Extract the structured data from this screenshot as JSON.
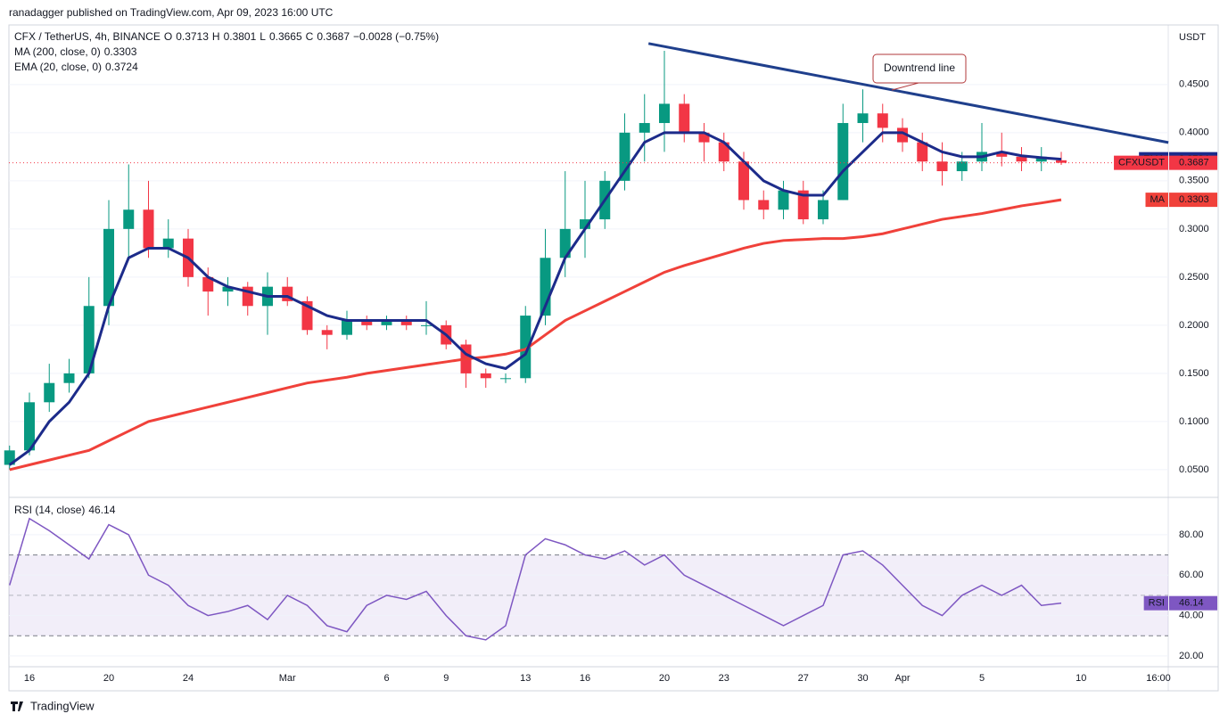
{
  "header": {
    "publisher": "ranadagger published on TradingView.com, Apr 09, 2023 16:00 UTC"
  },
  "footer": {
    "brand": "TradingView"
  },
  "chart_data": [
    {
      "type": "candlestick",
      "title": "CFX / TetherUS, 4h, BINANCE",
      "ticker": "CFXUSDT",
      "y_label": "USDT",
      "ohlc_labels": [
        "O",
        "H",
        "L",
        "C"
      ],
      "change": "−0.0028 (−0.75%)",
      "up_color": "#089981",
      "down_color": "#f23645",
      "categories": [
        null,
        "16",
        null,
        null,
        null,
        "20",
        null,
        null,
        null,
        "24",
        null,
        null,
        null,
        null,
        "Mar",
        null,
        null,
        null,
        null,
        "6",
        null,
        null,
        "9",
        null,
        null,
        null,
        "13",
        null,
        null,
        "16",
        null,
        null,
        null,
        "20",
        null,
        null,
        "23",
        null,
        null,
        null,
        "27",
        null,
        null,
        "30",
        null,
        "Apr",
        null,
        null,
        null,
        "5",
        null,
        null,
        null,
        null
      ],
      "xticks_extra": [
        {
          "value": 54,
          "label": "10"
        },
        {
          "value": 57.9,
          "label": "16:00"
        }
      ],
      "open": [
        0.055,
        0.07,
        0.12,
        0.14,
        0.15,
        0.22,
        0.3,
        0.32,
        0.28,
        0.29,
        0.25,
        0.235,
        0.24,
        0.22,
        0.24,
        0.225,
        0.195,
        0.19,
        0.205,
        0.2,
        0.205,
        0.2,
        0.2,
        0.18,
        0.15,
        0.145,
        0.145,
        0.21,
        0.27,
        0.3,
        0.31,
        0.35,
        0.4,
        0.41,
        0.43,
        0.4,
        0.39,
        0.37,
        0.33,
        0.32,
        0.34,
        0.31,
        0.33,
        0.41,
        0.42,
        0.405,
        0.39,
        0.37,
        0.36,
        0.37,
        0.38,
        0.375,
        0.37,
        0.3713
      ],
      "high": [
        0.075,
        0.13,
        0.16,
        0.165,
        0.25,
        0.33,
        0.367,
        0.35,
        0.31,
        0.3,
        0.26,
        0.25,
        0.245,
        0.255,
        0.25,
        0.23,
        0.2,
        0.215,
        0.21,
        0.21,
        0.21,
        0.225,
        0.205,
        0.185,
        0.155,
        0.15,
        0.22,
        0.3,
        0.36,
        0.35,
        0.36,
        0.42,
        0.44,
        0.485,
        0.44,
        0.41,
        0.4,
        0.38,
        0.34,
        0.35,
        0.35,
        0.34,
        0.43,
        0.445,
        0.43,
        0.415,
        0.4,
        0.39,
        0.38,
        0.41,
        0.4,
        0.385,
        0.385,
        0.3801
      ],
      "low": [
        0.05,
        0.065,
        0.11,
        0.13,
        0.145,
        0.2,
        0.27,
        0.27,
        0.27,
        0.24,
        0.21,
        0.22,
        0.21,
        0.19,
        0.22,
        0.19,
        0.175,
        0.185,
        0.195,
        0.195,
        0.195,
        0.19,
        0.175,
        0.135,
        0.135,
        0.14,
        0.14,
        0.2,
        0.25,
        0.27,
        0.3,
        0.34,
        0.37,
        0.38,
        0.39,
        0.37,
        0.36,
        0.32,
        0.31,
        0.31,
        0.305,
        0.305,
        0.33,
        0.39,
        0.39,
        0.38,
        0.36,
        0.345,
        0.35,
        0.36,
        0.365,
        0.36,
        0.36,
        0.3665
      ],
      "close": [
        0.07,
        0.12,
        0.14,
        0.15,
        0.22,
        0.3,
        0.32,
        0.28,
        0.29,
        0.25,
        0.235,
        0.24,
        0.22,
        0.24,
        0.225,
        0.195,
        0.19,
        0.205,
        0.2,
        0.205,
        0.2,
        0.2,
        0.18,
        0.15,
        0.145,
        0.145,
        0.21,
        0.27,
        0.3,
        0.31,
        0.35,
        0.4,
        0.41,
        0.43,
        0.4,
        0.39,
        0.37,
        0.33,
        0.32,
        0.34,
        0.31,
        0.33,
        0.41,
        0.42,
        0.405,
        0.39,
        0.37,
        0.36,
        0.37,
        0.38,
        0.375,
        0.37,
        0.375,
        0.3687
      ],
      "series": [
        {
          "name": "MA (200, close, 0)",
          "tag": "MA",
          "color": "#f0413a",
          "values": [
            0.05,
            0.055,
            0.06,
            0.065,
            0.07,
            0.08,
            0.09,
            0.1,
            0.105,
            0.11,
            0.115,
            0.12,
            0.125,
            0.13,
            0.135,
            0.14,
            0.143,
            0.146,
            0.15,
            0.153,
            0.156,
            0.159,
            0.162,
            0.165,
            0.167,
            0.17,
            0.175,
            0.19,
            0.205,
            0.215,
            0.225,
            0.235,
            0.245,
            0.255,
            0.262,
            0.268,
            0.274,
            0.28,
            0.285,
            0.288,
            0.289,
            0.29,
            0.29,
            0.292,
            0.295,
            0.3,
            0.305,
            0.31,
            0.313,
            0.316,
            0.32,
            0.324,
            0.327,
            0.3303
          ]
        },
        {
          "name": "EMA (20, close, 0)",
          "tag": "EMA",
          "color": "#1c2b8a",
          "values": [
            0.055,
            0.07,
            0.1,
            0.12,
            0.15,
            0.22,
            0.27,
            0.28,
            0.28,
            0.27,
            0.25,
            0.24,
            0.235,
            0.23,
            0.23,
            0.22,
            0.21,
            0.205,
            0.205,
            0.205,
            0.205,
            0.205,
            0.19,
            0.17,
            0.16,
            0.155,
            0.17,
            0.22,
            0.27,
            0.3,
            0.33,
            0.36,
            0.39,
            0.4,
            0.4,
            0.4,
            0.39,
            0.37,
            0.35,
            0.34,
            0.335,
            0.335,
            0.36,
            0.38,
            0.4,
            0.4,
            0.39,
            0.38,
            0.375,
            0.375,
            0.38,
            0.376,
            0.374,
            0.3724
          ]
        }
      ],
      "annotation": {
        "text": "Downtrend line",
        "color": "#1f3f8c",
        "line": {
          "x": [
            32.2,
            58.4
          ],
          "y": [
            0.4926,
            0.3898
          ]
        }
      },
      "ylim": [
        0.024,
        0.51
      ],
      "yticks": [
        {
          "value": 0.05,
          "label": "0.0500"
        },
        {
          "value": 0.1,
          "label": "0.1000"
        },
        {
          "value": 0.15,
          "label": "0.1500"
        },
        {
          "value": 0.2,
          "label": "0.2000"
        },
        {
          "value": 0.25,
          "label": "0.2500"
        },
        {
          "value": 0.3,
          "label": "0.3000"
        },
        {
          "value": 0.35,
          "label": "0.3500"
        },
        {
          "value": 0.4,
          "label": "0.4000"
        },
        {
          "value": 0.45,
          "label": "0.4500"
        }
      ],
      "grid": true
    },
    {
      "type": "line",
      "title": "RSI (14, close)",
      "series": [
        {
          "name": "RSI",
          "color": "#7e57c2",
          "values": [
            55,
            88,
            82,
            75,
            68,
            85,
            80,
            60,
            55,
            45,
            40,
            42,
            45,
            38,
            50,
            45,
            35,
            32,
            45,
            50,
            48,
            52,
            40,
            30,
            28,
            35,
            70,
            78,
            75,
            70,
            68,
            72,
            65,
            70,
            60,
            55,
            50,
            45,
            40,
            35,
            40,
            45,
            70,
            72,
            65,
            55,
            45,
            40,
            50,
            55,
            50,
            55,
            45,
            46.14
          ]
        }
      ],
      "band": [
        30,
        70
      ],
      "midline": 50,
      "ylim": [
        16,
        95.4
      ],
      "yticks": [
        {
          "value": 20,
          "label": "20.00"
        },
        {
          "value": 40,
          "label": "40.00"
        },
        {
          "value": 60,
          "label": "60.00"
        },
        {
          "value": 80,
          "label": "80.00"
        }
      ],
      "grid": true
    }
  ]
}
